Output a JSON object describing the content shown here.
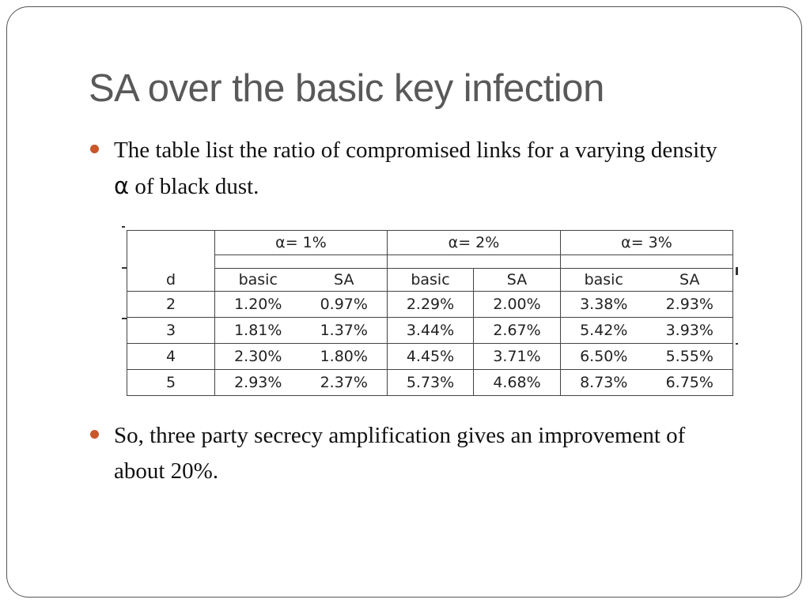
{
  "slide": {
    "title": "SA over the basic key infection",
    "bullets": [
      {
        "text_before": "The table list the ratio of compromised links for a varying density ",
        "symbol": "α",
        "text_after": " of black dust."
      },
      {
        "text": "So, three party secrecy amplification gives an improvement of about 20%."
      }
    ],
    "bullet_color": "#c8572c",
    "title_color": "#595959"
  },
  "table": {
    "groups": [
      "α= 1%",
      "α= 2%",
      "α= 3%"
    ],
    "row_header": "d",
    "sub_headers": [
      "basic",
      "SA",
      "basic",
      "SA",
      "basic",
      "SA"
    ],
    "rows": [
      {
        "d": "2",
        "values": [
          "1.20%",
          "0.97%",
          "2.29%",
          "2.00%",
          "3.38%",
          "2.93%"
        ]
      },
      {
        "d": "3",
        "values": [
          "1.81%",
          "1.37%",
          "3.44%",
          "2.67%",
          "5.42%",
          "3.93%"
        ]
      },
      {
        "d": "4",
        "values": [
          "2.30%",
          "1.80%",
          "4.45%",
          "3.71%",
          "6.50%",
          "5.55%"
        ]
      },
      {
        "d": "5",
        "values": [
          "2.93%",
          "2.37%",
          "5.73%",
          "4.68%",
          "8.73%",
          "6.75%"
        ]
      }
    ]
  }
}
